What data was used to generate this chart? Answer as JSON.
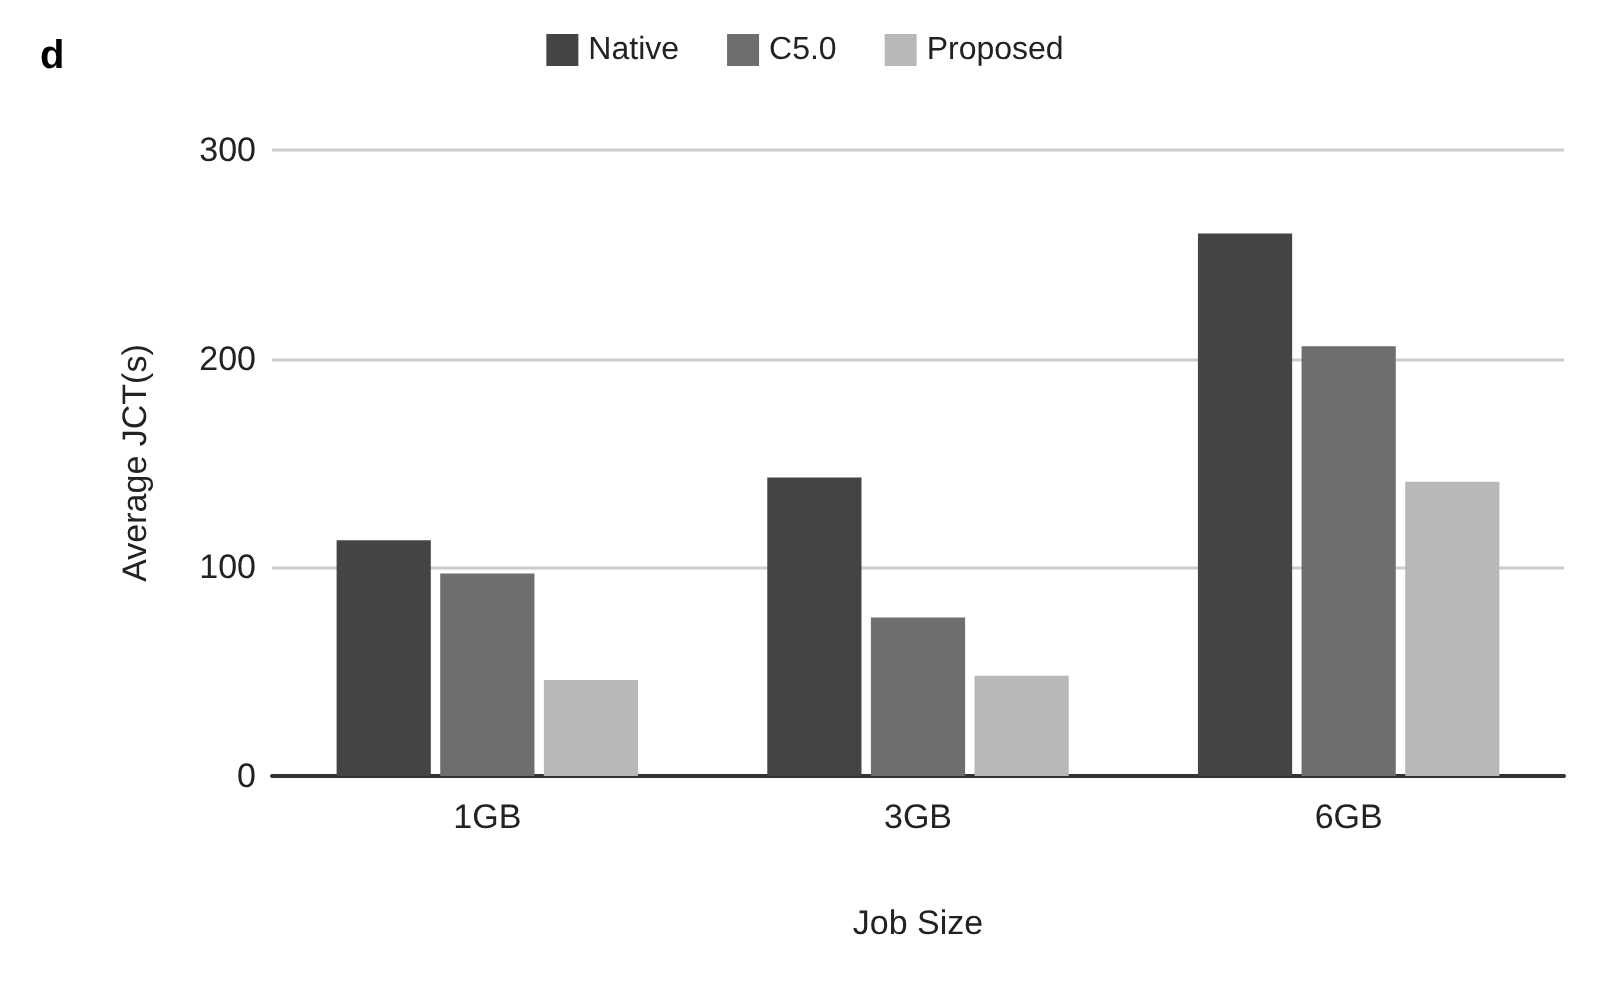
{
  "chart_data": {
    "type": "bar",
    "xlabel": "Job Size",
    "ylabel": "Average JCT(s)",
    "annotations": [
      "d"
    ],
    "categories": [
      "1GB",
      "3GB",
      "6GB"
    ],
    "series": [
      {
        "name": "Native",
        "color": "#444444",
        "values": [
          113,
          143,
          260
        ]
      },
      {
        "name": "C5.0",
        "color": "#6e6e6e",
        "values": [
          97,
          76,
          206
        ]
      },
      {
        "name": "Proposed",
        "color": "#b8b8b8",
        "values": [
          46,
          48,
          141
        ]
      }
    ],
    "ylim": [
      0,
      300
    ],
    "yticks": [
      0,
      100,
      200,
      300
    ],
    "grid": "y",
    "legend": "top"
  }
}
